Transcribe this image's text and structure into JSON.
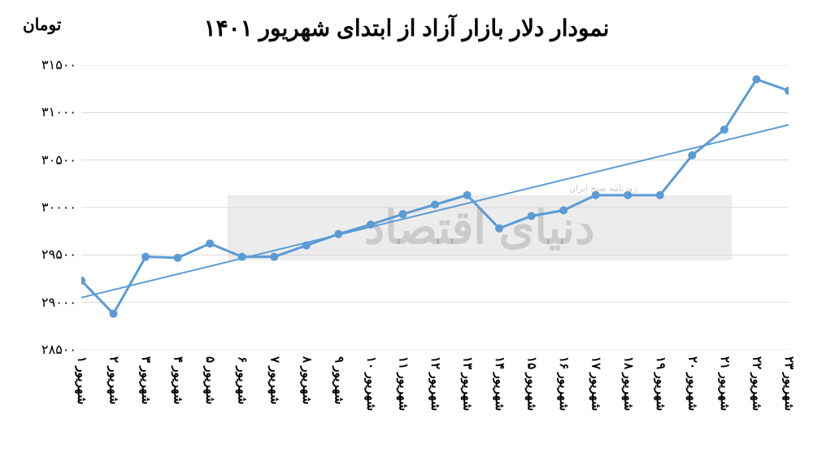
{
  "chart": {
    "type": "line",
    "title": "نمودار دلار بازار آزاد از ابتدای شهریور ۱۴۰۱",
    "y_axis_title": "تومان",
    "watermark": "دنیای اقتصاد",
    "watermark_sub": "روزنامه صبح ایران",
    "background_color": "#ffffff",
    "grid_color": "#d9d9d9",
    "line_color": "#5b9bd5",
    "trendline_color": "#5b9bd5",
    "line_width": 3,
    "trendline_width": 2,
    "marker_size": 5,
    "marker_color": "#5b9bd5",
    "ylim": [
      28500,
      31500
    ],
    "ytick_step": 500,
    "y_ticks": [
      28500,
      29000,
      29500,
      30000,
      30500,
      31000,
      31500
    ],
    "y_tick_labels": [
      "۲۸۵۰۰",
      "۲۹۰۰۰",
      "۲۹۵۰۰",
      "۳۰۰۰۰",
      "۳۰۵۰۰",
      "۳۱۰۰۰",
      "۳۱۵۰۰"
    ],
    "categories": [
      "شهریور ۱",
      "شهریور ۲",
      "شهریور ۳",
      "شهریور ۴",
      "شهریور ۵",
      "شهریور ۶",
      "شهریور ۷",
      "شهریور ۸",
      "شهریور ۹",
      "شهریور ۱۰",
      "شهریور ۱۱",
      "شهریور ۱۲",
      "شهریور ۱۳",
      "شهریور ۱۴",
      "شهریور ۱۵",
      "شهریور ۱۶",
      "شهریور ۱۷",
      "شهریور ۱۸",
      "شهریور ۱۹",
      "شهریور ۲۰",
      "شهریور ۲۱",
      "شهریور ۲۲",
      "شهریور ۲۳"
    ],
    "values": [
      29230,
      28880,
      29480,
      29470,
      29620,
      29480,
      29480,
      29600,
      29720,
      29820,
      29930,
      30030,
      30130,
      29780,
      29910,
      29970,
      30130,
      30130,
      30130,
      30550,
      30820,
      31350,
      31230
    ],
    "trendline": {
      "start_value": 29050,
      "end_value": 30870
    },
    "title_fontsize": 28,
    "label_fontsize": 16,
    "x_label_fontsize": 15
  }
}
